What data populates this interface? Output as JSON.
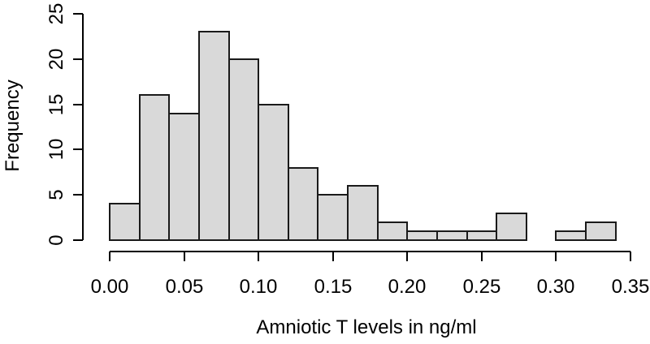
{
  "chart_data": {
    "type": "bar",
    "subtype": "histogram",
    "title": "",
    "xlabel": "Amniotic T levels in ng/ml",
    "ylabel": "Frequency",
    "xlim": [
      0,
      0.35
    ],
    "ylim": [
      0,
      25
    ],
    "bin_width": 0.02,
    "bin_edges": [
      0.0,
      0.02,
      0.04,
      0.06,
      0.08,
      0.1,
      0.12,
      0.14,
      0.16,
      0.18,
      0.2,
      0.22,
      0.24,
      0.26,
      0.28,
      0.3,
      0.32,
      0.34
    ],
    "counts": [
      4,
      16,
      14,
      23,
      20,
      15,
      8,
      5,
      6,
      2,
      1,
      1,
      1,
      3,
      0,
      1,
      2
    ],
    "x_tick_values": [
      0,
      0.05,
      0.1,
      0.15,
      0.2,
      0.25,
      0.3,
      0.35
    ],
    "x_tick_labels": [
      "0.00",
      "0.05",
      "0.10",
      "0.15",
      "0.20",
      "0.25",
      "0.30",
      "0.35"
    ],
    "y_tick_values": [
      0,
      5,
      10,
      15,
      20,
      25
    ],
    "y_tick_labels": [
      "0",
      "5",
      "10",
      "15",
      "20",
      "25"
    ],
    "grid": false,
    "legend_position": "none",
    "colors": {
      "bar_fill": "#d9d9d9",
      "bar_border": "#1a1a1a",
      "axis": "#000000",
      "text": "#000000",
      "background": "#ffffff"
    }
  }
}
